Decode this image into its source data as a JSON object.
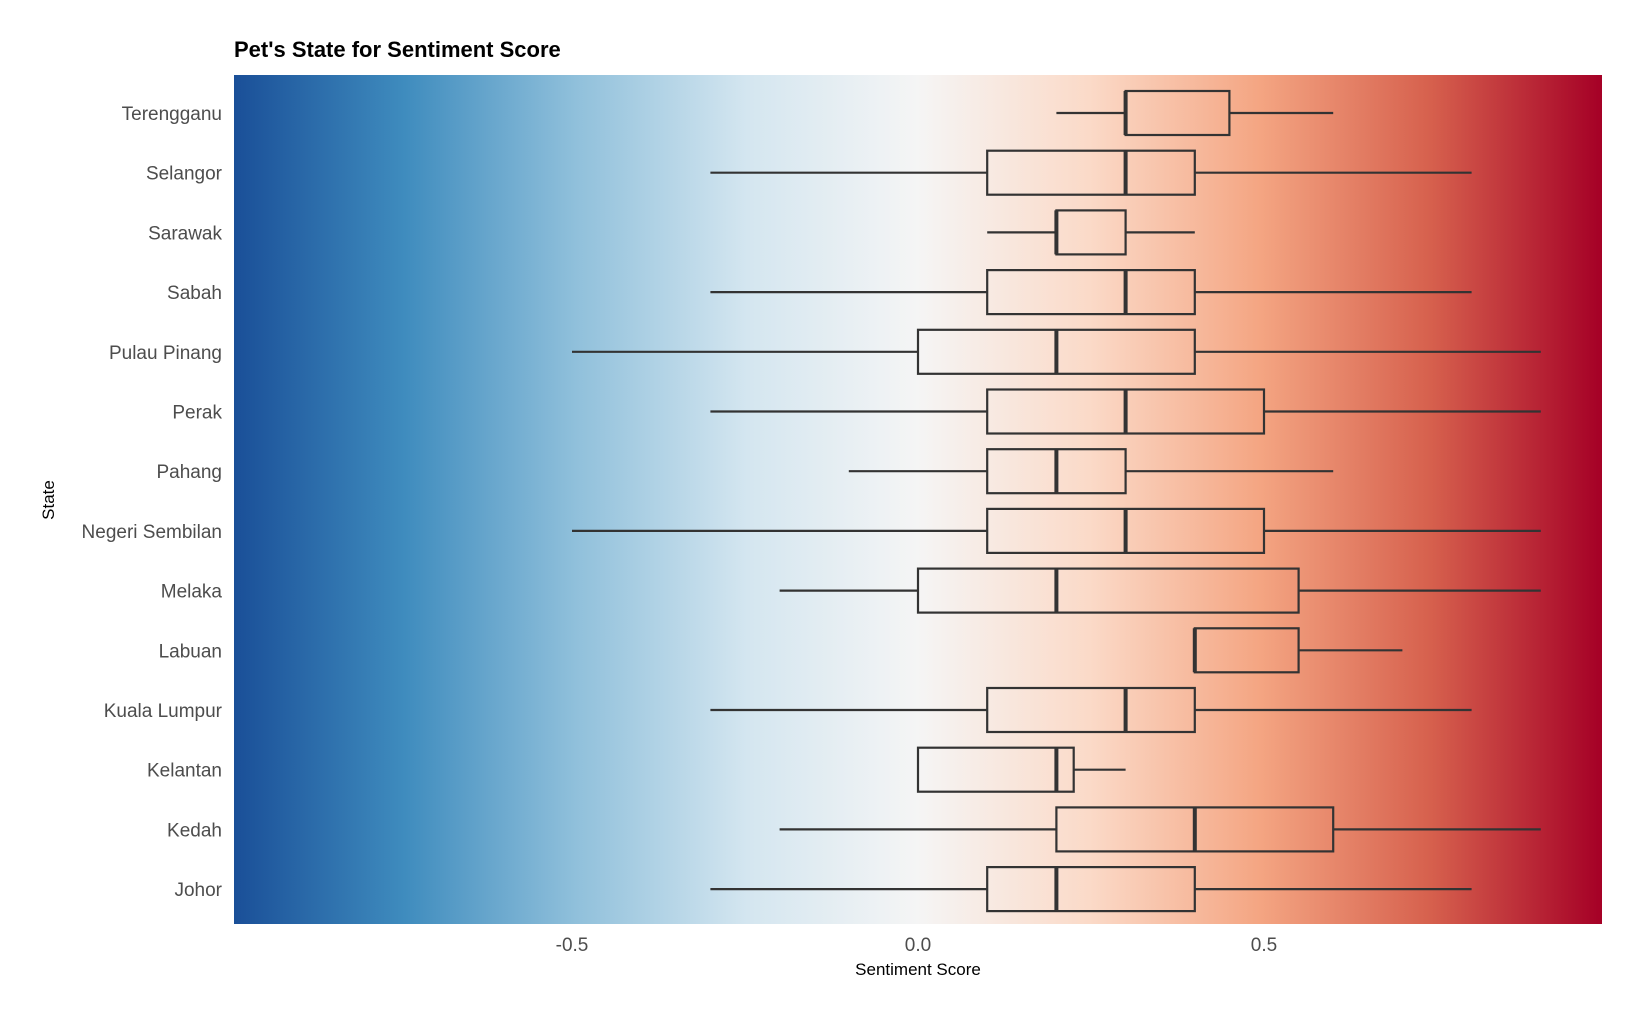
{
  "chart_data": {
    "type": "boxplot",
    "title": "Pet's State for Sentiment Score",
    "xlabel": "Sentiment Score",
    "ylabel": "State",
    "xlim": [
      -0.99,
      0.99
    ],
    "xticks": [
      {
        "value": -0.5,
        "label": "-0.5"
      },
      {
        "value": 0.0,
        "label": "0.0"
      },
      {
        "value": 0.5,
        "label": "0.5"
      }
    ],
    "background_gradient": [
      "#1a4f98",
      "#3f8cbe",
      "#90c0db",
      "#d4e6f0",
      "#f5f5f5",
      "#fbdac8",
      "#f4a582",
      "#d6604d",
      "#a50026"
    ],
    "grid": false,
    "categories": [
      "Terengganu",
      "Selangor",
      "Sarawak",
      "Sabah",
      "Pulau Pinang",
      "Perak",
      "Pahang",
      "Negeri Sembilan",
      "Melaka",
      "Labuan",
      "Kuala Lumpur",
      "Kelantan",
      "Kedah",
      "Johor"
    ],
    "series": [
      {
        "category": "Terengganu",
        "min": 0.2,
        "q1": 0.3,
        "median": 0.3,
        "q3": 0.45,
        "max": 0.6
      },
      {
        "category": "Selangor",
        "min": -0.3,
        "q1": 0.1,
        "median": 0.3,
        "q3": 0.4,
        "max": 0.8
      },
      {
        "category": "Sarawak",
        "min": 0.1,
        "q1": 0.2,
        "median": 0.2,
        "q3": 0.3,
        "max": 0.4
      },
      {
        "category": "Sabah",
        "min": -0.3,
        "q1": 0.1,
        "median": 0.3,
        "q3": 0.4,
        "max": 0.8
      },
      {
        "category": "Pulau Pinang",
        "min": -0.5,
        "q1": 0.0,
        "median": 0.2,
        "q3": 0.4,
        "max": 0.9
      },
      {
        "category": "Perak",
        "min": -0.3,
        "q1": 0.1,
        "median": 0.3,
        "q3": 0.5,
        "max": 0.9
      },
      {
        "category": "Pahang",
        "min": -0.1,
        "q1": 0.1,
        "median": 0.2,
        "q3": 0.3,
        "max": 0.6
      },
      {
        "category": "Negeri Sembilan",
        "min": -0.5,
        "q1": 0.1,
        "median": 0.3,
        "q3": 0.5,
        "max": 0.9
      },
      {
        "category": "Melaka",
        "min": -0.2,
        "q1": 0.0,
        "median": 0.2,
        "q3": 0.55,
        "max": 0.9
      },
      {
        "category": "Labuan",
        "min": 0.4,
        "q1": 0.4,
        "median": 0.4,
        "q3": 0.55,
        "max": 0.7
      },
      {
        "category": "Kuala Lumpur",
        "min": -0.3,
        "q1": 0.1,
        "median": 0.3,
        "q3": 0.4,
        "max": 0.8
      },
      {
        "category": "Kelantan",
        "min": 0.0,
        "q1": 0.0,
        "median": 0.2,
        "q3": 0.225,
        "max": 0.3
      },
      {
        "category": "Kedah",
        "min": -0.2,
        "q1": 0.2,
        "median": 0.4,
        "q3": 0.6,
        "max": 0.9
      },
      {
        "category": "Johor",
        "min": -0.3,
        "q1": 0.1,
        "median": 0.2,
        "q3": 0.4,
        "max": 0.8
      }
    ]
  }
}
